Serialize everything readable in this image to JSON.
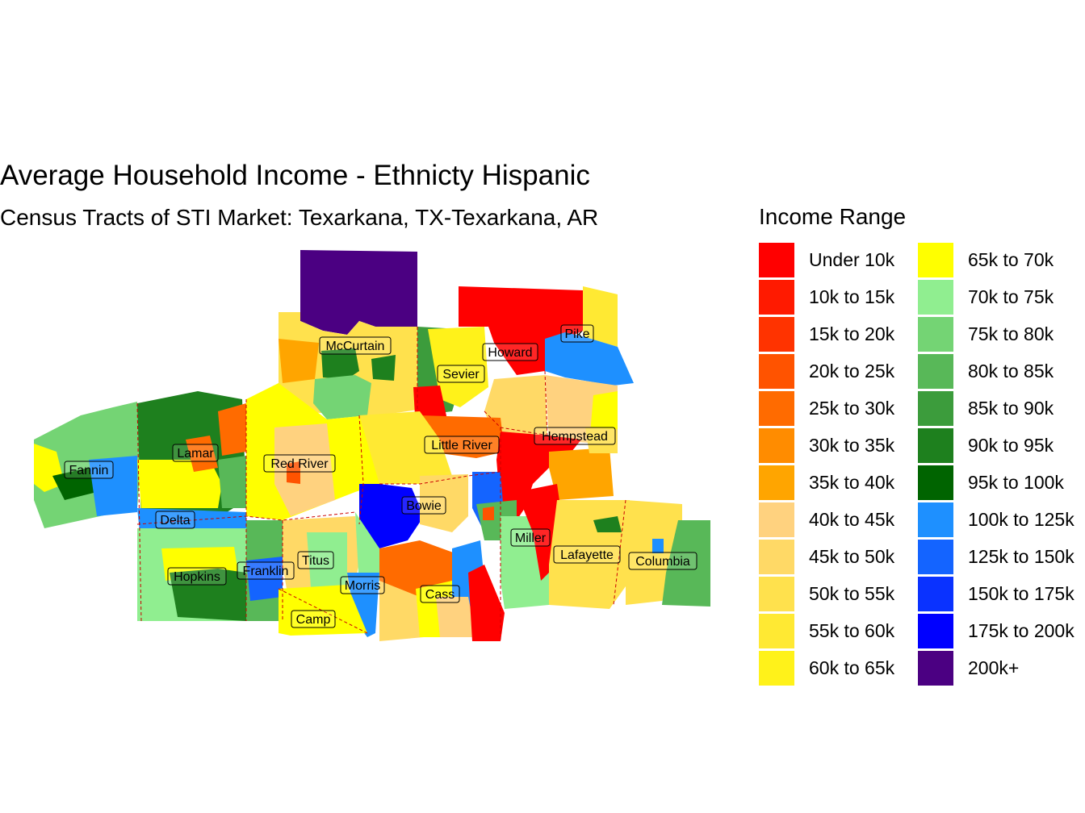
{
  "title": "Average Household Income - Ethnicty Hispanic",
  "subtitle": "Census Tracts of STI Market: Texarkana, TX-Texarkana, AR",
  "legend": {
    "title": "Income Range",
    "items": [
      {
        "label": "Under 10k",
        "color": "#FF0000"
      },
      {
        "label": "10k to 15k",
        "color": "#FF1A00"
      },
      {
        "label": "15k to 20k",
        "color": "#FF3300"
      },
      {
        "label": "20k to 25k",
        "color": "#FF5300"
      },
      {
        "label": "25k to 30k",
        "color": "#FF6B00"
      },
      {
        "label": "30k to 35k",
        "color": "#FF8C00"
      },
      {
        "label": "35k to 40k",
        "color": "#FFA500"
      },
      {
        "label": "40k to 45k",
        "color": "#FFD27F"
      },
      {
        "label": "45k to 50k",
        "color": "#FFD966"
      },
      {
        "label": "50k to 55k",
        "color": "#FFE14D"
      },
      {
        "label": "55k to 60k",
        "color": "#FFE933"
      },
      {
        "label": "60k to 65k",
        "color": "#FFF21A"
      },
      {
        "label": "65k to 70k",
        "color": "#FFFF00"
      },
      {
        "label": "70k to 75k",
        "color": "#90EE90"
      },
      {
        "label": "75k to 80k",
        "color": "#74D474"
      },
      {
        "label": "80k to 85k",
        "color": "#58B858"
      },
      {
        "label": "85k to 90k",
        "color": "#3C9C3C"
      },
      {
        "label": "90k to 95k",
        "color": "#1E801E"
      },
      {
        "label": "95k to 100k",
        "color": "#006400"
      },
      {
        "label": "100k to 125k",
        "color": "#1E90FF"
      },
      {
        "label": "125k to 150k",
        "color": "#1464FF"
      },
      {
        "label": "150k to 175k",
        "color": "#0A32FF"
      },
      {
        "label": "175k to 200k",
        "color": "#0000FF"
      },
      {
        "label": "200k+",
        "color": "#4B0082"
      }
    ]
  },
  "counties": [
    {
      "name": "McCurtain"
    },
    {
      "name": "Pike"
    },
    {
      "name": "Howard"
    },
    {
      "name": "Sevier"
    },
    {
      "name": "Hempstead"
    },
    {
      "name": "Little River"
    },
    {
      "name": "Lamar"
    },
    {
      "name": "Fannin"
    },
    {
      "name": "Red River"
    },
    {
      "name": "Bowie"
    },
    {
      "name": "Delta"
    },
    {
      "name": "Miller"
    },
    {
      "name": "Lafayette"
    },
    {
      "name": "Titus"
    },
    {
      "name": "Columbia"
    },
    {
      "name": "Hopkins"
    },
    {
      "name": "Franklin"
    },
    {
      "name": "Morris"
    },
    {
      "name": "Cass"
    },
    {
      "name": "Camp"
    }
  ]
}
